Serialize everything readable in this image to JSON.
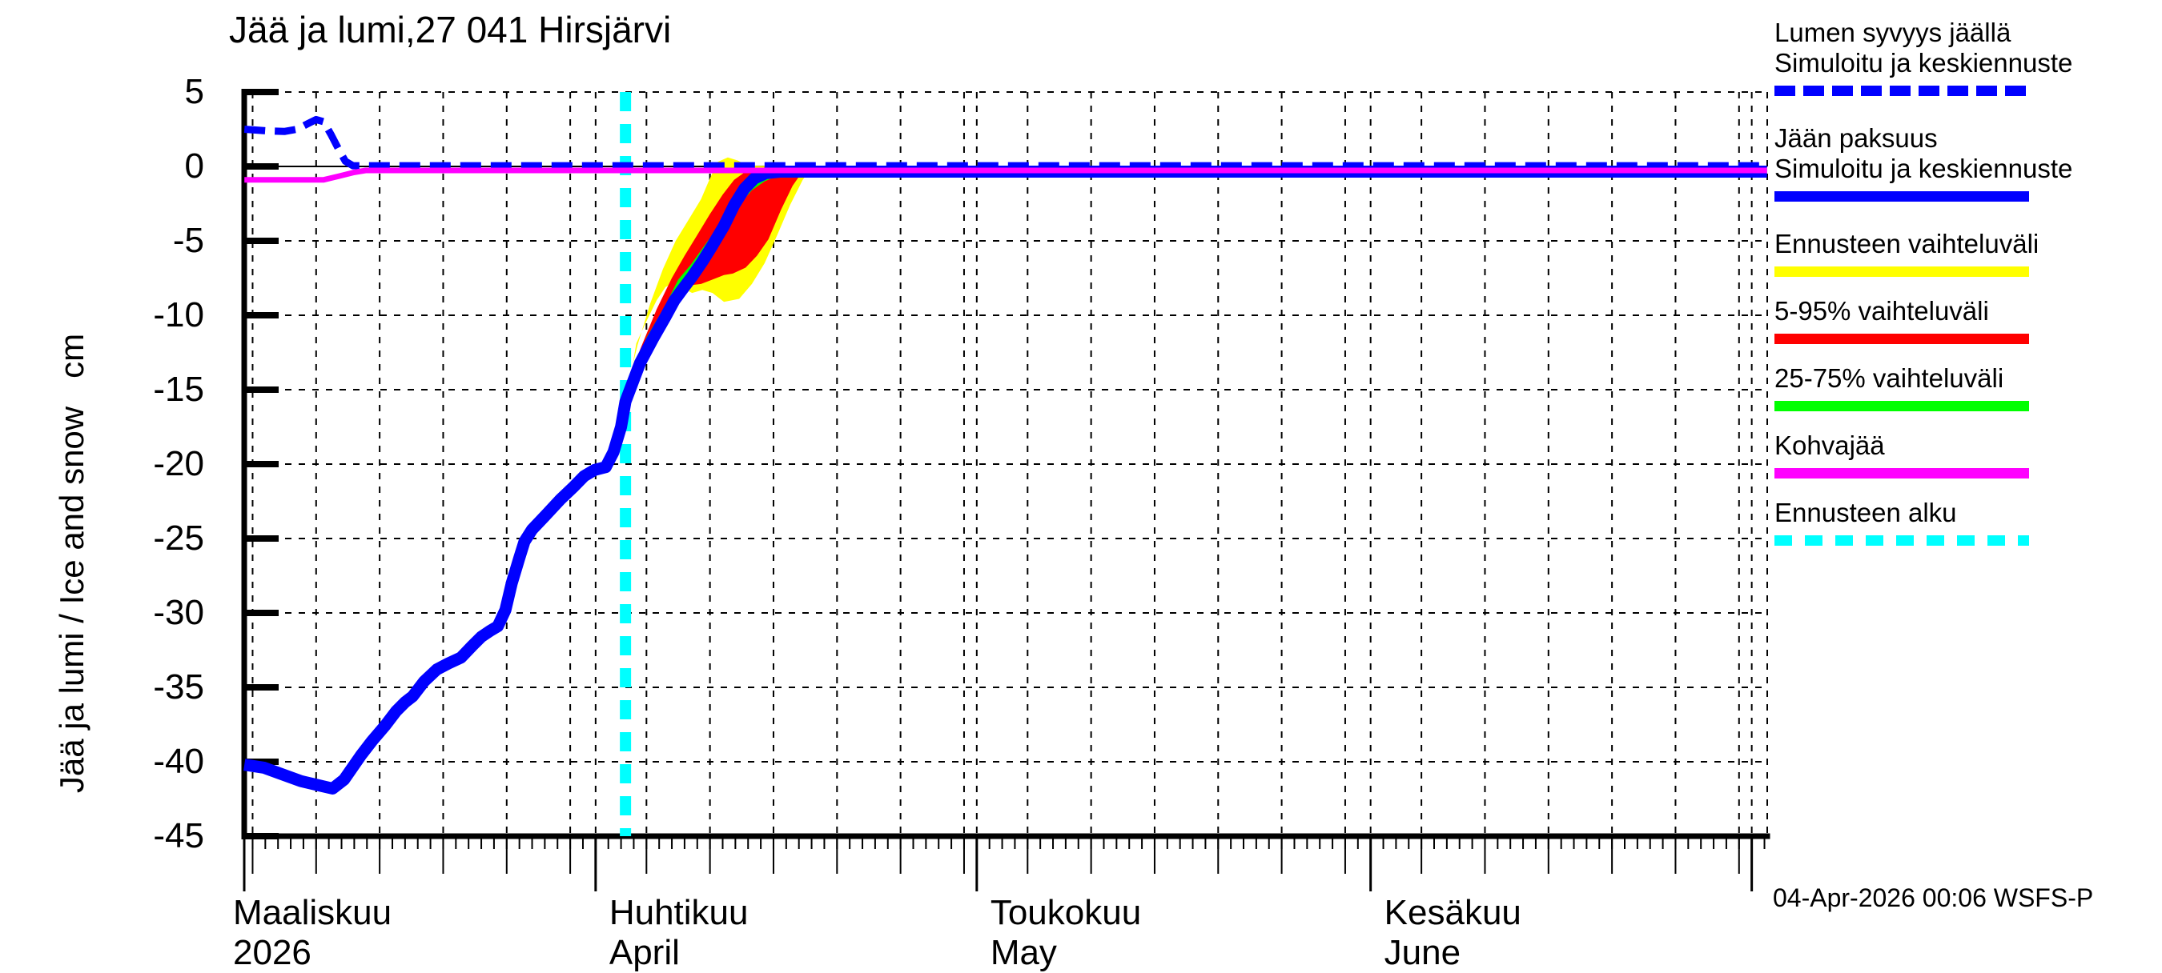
{
  "title": "Jää ja lumi,27 041 Hirsjärvi",
  "y_axis_title": "Jää ja lumi / Ice and snow   cm",
  "footer": {
    "timestamp": "04-Apr-2026 00:06 WSFS-P"
  },
  "colors": {
    "blue": "#0000ff",
    "magenta": "#ff00ff",
    "cyan": "#00ffff",
    "red": "#ff0000",
    "green": "#00ff00",
    "yellow": "#ffff00",
    "axis": "#000000",
    "background": "#ffffff"
  },
  "legend": [
    {
      "id": "snow-depth",
      "lines": [
        "Lumen syvyys jäällä",
        "Simuloitu ja keskiennuste"
      ],
      "color": "#0000ff",
      "dash": [
        26,
        10
      ]
    },
    {
      "id": "ice-thickness",
      "lines": [
        "Jään paksuus",
        "Simuloitu ja keskiennuste"
      ],
      "color": "#0000ff"
    },
    {
      "id": "forecast-range",
      "lines": [
        "Ennusteen vaihteluväli"
      ],
      "color": "#ffff00"
    },
    {
      "id": "range-5-95",
      "lines": [
        "5-95% vaihteluväli"
      ],
      "color": "#ff0000"
    },
    {
      "id": "range-25-75",
      "lines": [
        "25-75% vaihteluväli"
      ],
      "color": "#00ff00"
    },
    {
      "id": "kohvajaa",
      "lines": [
        "Kohvajää"
      ],
      "color": "#ff00ff"
    },
    {
      "id": "forecast-start",
      "lines": [
        "Ennusteen alku"
      ],
      "color": "#00ffff",
      "dash": [
        22,
        16
      ]
    }
  ],
  "chart_data": {
    "type": "line",
    "title": "Jää ja lumi,27 041 Hirsjärvi",
    "ylabel": "Jää ja lumi / Ice and snow cm",
    "x_unit": "days since 2026-03-01",
    "ylim": [
      -45,
      5
    ],
    "grid": true,
    "y_ticks": [
      5,
      0,
      -5,
      -10,
      -15,
      -20,
      -25,
      -30,
      -35,
      -40,
      -45
    ],
    "months": [
      {
        "fi": "Maaliskuu",
        "en": "2026",
        "day": 0,
        "label_x": 291
      },
      {
        "fi": "Huhtikuu",
        "en": "April",
        "day": 31
      },
      {
        "fi": "Toukokuu",
        "en": "May",
        "day": 61
      },
      {
        "fi": "Kesäkuu",
        "en": "June",
        "day": 92
      },
      {
        "fi": "",
        "en": "",
        "day": 122
      }
    ],
    "mid_tick_days": [
      4,
      9,
      14,
      19,
      24,
      29,
      35,
      40,
      45,
      50,
      55,
      60,
      65,
      70,
      75,
      80,
      85,
      90,
      96,
      101,
      106,
      111,
      116,
      121
    ],
    "day_range": [
      4,
      123
    ],
    "edge_tick_day": 3.35,
    "forecast_start_day": 33.35,
    "series": [
      {
        "id": "band-forecast-range",
        "name": "Ennusteen vaihteluväli",
        "type": "band",
        "color": "#ffff00",
        "upper": [
          [
            33.35,
            -15.3
          ],
          [
            34.3,
            -12.0
          ],
          [
            35.3,
            -9.2
          ],
          [
            36.3,
            -6.9
          ],
          [
            37.3,
            -5.0
          ],
          [
            38.3,
            -3.6
          ],
          [
            39.3,
            -2.2
          ],
          [
            40.0,
            -0.8
          ],
          [
            40.6,
            0.3
          ],
          [
            41.4,
            0.6
          ],
          [
            42.2,
            0.4
          ],
          [
            42.9,
            0.05
          ],
          [
            47.9,
            0.0
          ]
        ],
        "lower": [
          [
            33.35,
            -16.2
          ],
          [
            34.2,
            -11.9
          ],
          [
            35.0,
            -10.4
          ],
          [
            35.8,
            -9.0
          ],
          [
            36.5,
            -8.1
          ],
          [
            37.2,
            -7.8
          ],
          [
            37.9,
            -8.2
          ],
          [
            38.6,
            -8.5
          ],
          [
            39.4,
            -8.3
          ],
          [
            40.2,
            -8.5
          ],
          [
            41.1,
            -9.1
          ],
          [
            42.3,
            -8.9
          ],
          [
            43.3,
            -7.9
          ],
          [
            44.3,
            -6.5
          ],
          [
            45.3,
            -4.6
          ],
          [
            46.3,
            -2.6
          ],
          [
            47.3,
            -0.9
          ],
          [
            47.9,
            -0.2
          ]
        ]
      },
      {
        "id": "band-5-95",
        "name": "5-95% vaihteluväli",
        "type": "band",
        "color": "#ff0000",
        "upper": [
          [
            33.35,
            -15.4
          ],
          [
            34.5,
            -12.3
          ],
          [
            35.8,
            -9.6
          ],
          [
            37.0,
            -7.5
          ],
          [
            38.0,
            -6.0
          ],
          [
            39.0,
            -4.6
          ],
          [
            40.0,
            -3.2
          ],
          [
            41.0,
            -1.9
          ],
          [
            41.9,
            -0.9
          ],
          [
            42.8,
            -0.35
          ],
          [
            43.8,
            -0.15
          ],
          [
            47.4,
            -0.1
          ]
        ],
        "lower": [
          [
            33.35,
            -16.0
          ],
          [
            34.3,
            -12.8
          ],
          [
            35.3,
            -11.3
          ],
          [
            36.3,
            -10.0
          ],
          [
            37.3,
            -8.8
          ],
          [
            38.3,
            -8.0
          ],
          [
            39.3,
            -7.9
          ],
          [
            40.2,
            -7.6
          ],
          [
            41.1,
            -7.3
          ],
          [
            41.8,
            -7.2
          ],
          [
            42.8,
            -6.8
          ],
          [
            43.7,
            -6.0
          ],
          [
            44.6,
            -4.9
          ],
          [
            45.6,
            -2.9
          ],
          [
            46.5,
            -1.3
          ],
          [
            47.4,
            -0.2
          ]
        ]
      },
      {
        "id": "band-25-75",
        "name": "25-75% vaihteluväli",
        "type": "band",
        "color": "#00ff00",
        "upper": [
          [
            33.35,
            -15.6
          ],
          [
            35.0,
            -11.5
          ],
          [
            36.5,
            -9.3
          ],
          [
            37.5,
            -7.6
          ],
          [
            38.5,
            -6.6
          ],
          [
            39.5,
            -5.4
          ],
          [
            40.5,
            -4.2
          ],
          [
            41.5,
            -2.8
          ],
          [
            42.3,
            -1.6
          ],
          [
            43.2,
            -0.7
          ],
          [
            44.2,
            -0.3
          ],
          [
            45.4,
            -0.2
          ]
        ],
        "lower": [
          [
            33.35,
            -15.9
          ],
          [
            35.0,
            -12.8
          ],
          [
            36.3,
            -11.0
          ],
          [
            37.3,
            -9.6
          ],
          [
            38.3,
            -7.9
          ],
          [
            39.3,
            -6.6
          ],
          [
            40.3,
            -5.2
          ],
          [
            41.3,
            -3.9
          ],
          [
            42.3,
            -2.6
          ],
          [
            43.3,
            -1.6
          ],
          [
            44.3,
            -1.0
          ],
          [
            45.4,
            -0.6
          ]
        ]
      },
      {
        "id": "ice-line",
        "name": "Jään paksuus / Simuloitu ja keskiennuste",
        "type": "line",
        "color": "#0000ff",
        "width": 15,
        "points": [
          [
            3.35,
            -40.2
          ],
          [
            4.9,
            -40.4
          ],
          [
            6.5,
            -40.9
          ],
          [
            7.8,
            -41.3
          ],
          [
            9.3,
            -41.6
          ],
          [
            10.3,
            -41.8
          ],
          [
            11.2,
            -41.2
          ],
          [
            12.5,
            -39.6
          ],
          [
            13.4,
            -38.6
          ],
          [
            14.4,
            -37.6
          ],
          [
            15.3,
            -36.6
          ],
          [
            16.0,
            -36.0
          ],
          [
            16.6,
            -35.6
          ],
          [
            17.5,
            -34.6
          ],
          [
            18.5,
            -33.8
          ],
          [
            19.4,
            -33.4
          ],
          [
            20.4,
            -33.0
          ],
          [
            21.3,
            -32.2
          ],
          [
            22.0,
            -31.6
          ],
          [
            22.7,
            -31.2
          ],
          [
            23.3,
            -30.9
          ],
          [
            23.9,
            -29.8
          ],
          [
            24.4,
            -28.0
          ],
          [
            25.0,
            -26.3
          ],
          [
            25.4,
            -25.2
          ],
          [
            26.0,
            -24.4
          ],
          [
            27.0,
            -23.5
          ],
          [
            28.2,
            -22.4
          ],
          [
            29.3,
            -21.5
          ],
          [
            30.1,
            -20.8
          ],
          [
            30.9,
            -20.4
          ],
          [
            31.8,
            -20.2
          ],
          [
            32.4,
            -19.2
          ],
          [
            33.0,
            -17.5
          ],
          [
            33.35,
            -15.8
          ],
          [
            34.5,
            -13.2
          ],
          [
            35.5,
            -11.6
          ],
          [
            36.5,
            -10.1
          ],
          [
            37.2,
            -9.0
          ],
          [
            37.8,
            -8.3
          ],
          [
            38.6,
            -7.4
          ],
          [
            39.4,
            -6.4
          ],
          [
            40.2,
            -5.3
          ],
          [
            41.1,
            -4.0
          ],
          [
            41.9,
            -2.6
          ],
          [
            42.7,
            -1.5
          ],
          [
            43.5,
            -0.8
          ],
          [
            44.4,
            -0.45
          ],
          [
            45.5,
            -0.35
          ],
          [
            123.2,
            -0.35
          ]
        ]
      },
      {
        "id": "snow-line",
        "name": "Lumen syvyys jäällä / Simuloitu ja keskiennuste",
        "type": "line",
        "color": "#0000ff",
        "width": 9,
        "dash": [
          26,
          12
        ],
        "points": [
          [
            3.35,
            2.5
          ],
          [
            5.0,
            2.4
          ],
          [
            6.5,
            2.35
          ],
          [
            7.5,
            2.5
          ],
          [
            8.4,
            2.9
          ],
          [
            9.0,
            3.15
          ],
          [
            9.6,
            3.0
          ],
          [
            10.2,
            2.1
          ],
          [
            10.8,
            1.1
          ],
          [
            11.3,
            0.35
          ],
          [
            11.9,
            0.05
          ],
          [
            123.2,
            0.05
          ]
        ]
      },
      {
        "id": "kohvajaa-line",
        "name": "Kohvajää",
        "type": "line",
        "color": "#ff00ff",
        "width": 7,
        "points": [
          [
            3.35,
            -0.9
          ],
          [
            9.6,
            -0.9
          ],
          [
            10.8,
            -0.65
          ],
          [
            12.0,
            -0.4
          ],
          [
            12.9,
            -0.27
          ],
          [
            123.2,
            -0.27
          ]
        ]
      }
    ]
  }
}
